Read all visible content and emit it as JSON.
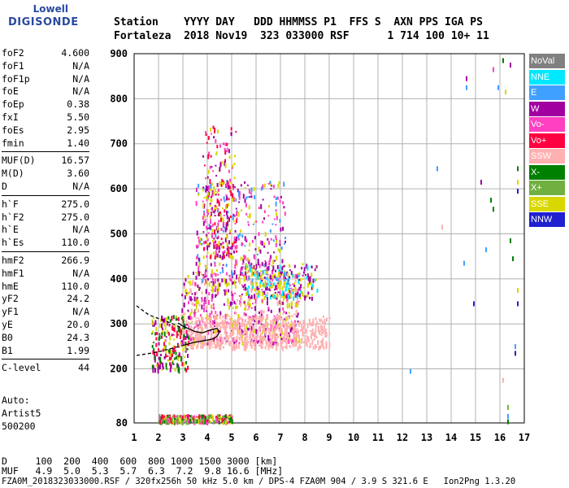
{
  "logo": {
    "top": "Lowell",
    "bottom": "DIGISONDE"
  },
  "header": {
    "row1": "Station    YYYY DAY   DDD HHMMSS P1  FFS S  AXN PPS IGA PS",
    "row2": "Fortaleza  2018 Nov19  323 033000 RSF      1 714 100 10+ 11"
  },
  "params_group1": [
    {
      "name": "foF2",
      "value": "4.600"
    },
    {
      "name": "foF1",
      "value": "N/A"
    },
    {
      "name": "foF1p",
      "value": "N/A"
    },
    {
      "name": "foE",
      "value": "N/A"
    },
    {
      "name": "foEp",
      "value": "0.38"
    },
    {
      "name": "fxI",
      "value": "5.50"
    },
    {
      "name": "foEs",
      "value": "2.95"
    },
    {
      "name": "fmin",
      "value": "1.40"
    }
  ],
  "params_group2": [
    {
      "name": "MUF(D)",
      "value": "16.57"
    },
    {
      "name": "M(D)",
      "value": "3.60"
    },
    {
      "name": "D",
      "value": "N/A"
    }
  ],
  "params_group3": [
    {
      "name": "h`F",
      "value": "275.0"
    },
    {
      "name": "h`F2",
      "value": "275.0"
    },
    {
      "name": "h`E",
      "value": "N/A"
    },
    {
      "name": "h`Es",
      "value": "110.0"
    }
  ],
  "params_group4": [
    {
      "name": "hmF2",
      "value": "266.9"
    },
    {
      "name": "hmF1",
      "value": "N/A"
    },
    {
      "name": "hmE",
      "value": "110.0"
    },
    {
      "name": "yF2",
      "value": "24.2"
    },
    {
      "name": "yF1",
      "value": "N/A"
    },
    {
      "name": "yE",
      "value": "20.0"
    },
    {
      "name": "B0",
      "value": "24.3"
    },
    {
      "name": "B1",
      "value": "1.99"
    }
  ],
  "params_group5": [
    {
      "name": "C-level",
      "value": "44"
    }
  ],
  "autoscale": {
    "line1": "Auto:",
    "line2": "Artist5",
    "line3": "500200"
  },
  "legend": [
    {
      "label": "NoVal",
      "color": "#808080"
    },
    {
      "label": "NNE",
      "color": "#00e8ff"
    },
    {
      "label": "E",
      "color": "#40a0ff"
    },
    {
      "label": "W",
      "color": "#a000a0"
    },
    {
      "label": "Vo-",
      "color": "#ff40c0"
    },
    {
      "label": "Vo+",
      "color": "#ff0040"
    },
    {
      "label": "SSW",
      "color": "#ffb0b0"
    },
    {
      "label": "X-",
      "color": "#008000"
    },
    {
      "label": "X+",
      "color": "#70b040"
    },
    {
      "label": "SSE",
      "color": "#d8d800"
    },
    {
      "label": "NNW",
      "color": "#2020d0"
    }
  ],
  "footer": {
    "line1": "D     100  200  400  600  800 1000 1500 3000 [km]",
    "line2": "MUF   4.9  5.0  5.3  5.7  6.3  7.2  9.8 16.6 [MHz]",
    "line3": "FZA0M_2018323033000.RSF / 320fx256h 50 kHz 5.0 km / DPS-4 FZA0M 904 / 3.9 S 321.6 E   Ion2Png 1.3.20"
  },
  "chart_data": {
    "type": "scatter",
    "title": "",
    "xlabel": "",
    "ylabel": "",
    "xlim": [
      1,
      17
    ],
    "ylim": [
      80,
      900
    ],
    "x_ticks": [
      1,
      2,
      3,
      4,
      5,
      6,
      7,
      8,
      9,
      10,
      11,
      12,
      13,
      14,
      15,
      16,
      17
    ],
    "y_ticks": [
      80,
      200,
      300,
      400,
      500,
      600,
      700,
      800,
      900
    ],
    "grid": true,
    "trace_lines": [
      {
        "name": "upper-dashed",
        "style": "dashed",
        "points": [
          [
            1.1,
            340
          ],
          [
            1.6,
            320
          ],
          [
            2.0,
            312
          ],
          [
            2.5,
            302
          ],
          [
            3.0,
            290
          ]
        ]
      },
      {
        "name": "lower-dashed",
        "style": "dashed",
        "points": [
          [
            1.1,
            230
          ],
          [
            1.6,
            234
          ],
          [
            2.0,
            238
          ],
          [
            2.5,
            245
          ],
          [
            3.0,
            252
          ]
        ]
      },
      {
        "name": "profile",
        "style": "solid",
        "points": [
          [
            3.0,
            252
          ],
          [
            3.4,
            258
          ],
          [
            3.8,
            262
          ],
          [
            4.2,
            266
          ],
          [
            4.4,
            272
          ],
          [
            4.5,
            282
          ],
          [
            4.4,
            290
          ],
          [
            4.1,
            286
          ],
          [
            3.8,
            280
          ],
          [
            3.5,
            283
          ],
          [
            3.2,
            290
          ],
          [
            3.0,
            295
          ],
          [
            2.8,
            302
          ]
        ]
      }
    ],
    "clusters": [
      {
        "name": "F-layer-main",
        "x": [
          2.9,
          7.8
        ],
        "y": [
          260,
          420
        ],
        "colors": [
          "SSE",
          "SSW",
          "Vo-",
          "W"
        ],
        "weight": 1.0
      },
      {
        "name": "F-layer-low-pink",
        "x": [
          3.2,
          9.0
        ],
        "y": [
          250,
          320
        ],
        "colors": [
          "SSW"
        ],
        "weight": 0.8
      },
      {
        "name": "F-upper-spread",
        "x": [
          3.5,
          7.2
        ],
        "y": [
          400,
          620
        ],
        "colors": [
          "W",
          "Vo-",
          "SSE",
          "E"
        ],
        "weight": 0.5
      },
      {
        "name": "F-spikes-4to5",
        "x": [
          3.8,
          5.2
        ],
        "y": [
          450,
          740
        ],
        "colors": [
          "SSE",
          "W",
          "Vo-",
          "Vo+"
        ],
        "weight": 0.35
      },
      {
        "name": "low-F-edge",
        "x": [
          1.7,
          3.2
        ],
        "y": [
          200,
          320
        ],
        "colors": [
          "Vo+",
          "X-",
          "SSE",
          "W"
        ],
        "weight": 0.3
      },
      {
        "name": "E-sporadic",
        "x": [
          2.0,
          5.0
        ],
        "y": [
          85,
          100
        ],
        "colors": [
          "Vo+",
          "X-",
          "X+",
          "Vo-",
          "SSE"
        ],
        "weight": 0.35
      },
      {
        "name": "F-high-ext",
        "x": [
          5.5,
          8.5
        ],
        "y": [
          360,
          440
        ],
        "colors": [
          "SSE",
          "W",
          "NNE"
        ],
        "weight": 0.3
      }
    ],
    "scattered_points": [
      [
        14.6,
        850,
        "W"
      ],
      [
        14.6,
        830,
        "E"
      ],
      [
        15.9,
        830,
        "E"
      ],
      [
        15.7,
        870,
        "Vo-"
      ],
      [
        16.1,
        890,
        "X-"
      ],
      [
        16.4,
        880,
        "W"
      ],
      [
        16.2,
        820,
        "SSE"
      ],
      [
        13.4,
        650,
        "E"
      ],
      [
        15.2,
        620,
        "W"
      ],
      [
        15.6,
        580,
        "X-"
      ],
      [
        15.7,
        560,
        "X-"
      ],
      [
        16.7,
        650,
        "X-"
      ],
      [
        16.7,
        620,
        "SSE"
      ],
      [
        16.7,
        600,
        "NNW"
      ],
      [
        16.4,
        490,
        "X-"
      ],
      [
        16.5,
        450,
        "X-"
      ],
      [
        16.7,
        380,
        "SSE"
      ],
      [
        16.7,
        350,
        "NNW"
      ],
      [
        16.6,
        240,
        "NNW"
      ],
      [
        16.6,
        255,
        "E"
      ],
      [
        14.5,
        440,
        "E"
      ],
      [
        13.6,
        520,
        "SSW"
      ],
      [
        12.3,
        200,
        "E"
      ],
      [
        14.9,
        350,
        "NNW"
      ],
      [
        16.1,
        180,
        "SSW"
      ],
      [
        16.3,
        120,
        "X+"
      ],
      [
        16.3,
        100,
        "E"
      ],
      [
        16.3,
        88,
        "X-"
      ],
      [
        15.4,
        470,
        "E"
      ]
    ]
  }
}
